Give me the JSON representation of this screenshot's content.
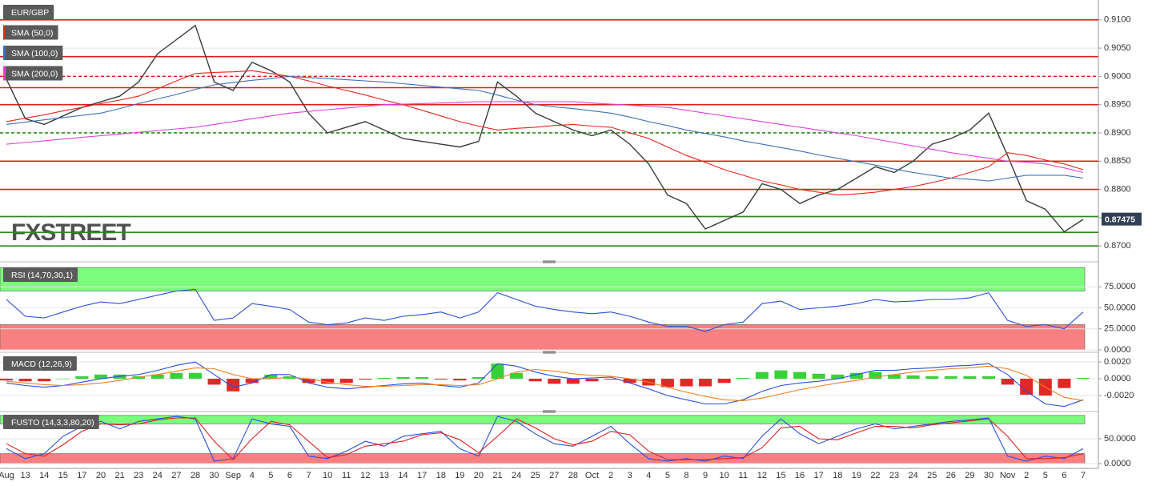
{
  "chart_data": [
    {
      "type": "line",
      "title": "EUR/GBP",
      "watermark": "FXSTREET",
      "last_price": 0.87475,
      "categories": [
        "Aug",
        "13",
        "14",
        "15",
        "17",
        "20",
        "21",
        "23",
        "24",
        "27",
        "28",
        "30",
        "Sep",
        "4",
        "5",
        "6",
        "7",
        "10",
        "11",
        "12",
        "13",
        "14",
        "17",
        "18",
        "19",
        "20",
        "21",
        "24",
        "25",
        "27",
        "28",
        "Oct",
        "2",
        "3",
        "4",
        "5",
        "8",
        "9",
        "10",
        "11",
        "12",
        "15",
        "16",
        "17",
        "18",
        "19",
        "22",
        "23",
        "24",
        "25",
        "26",
        "29",
        "30",
        "Nov",
        "2",
        "5",
        "6",
        "7"
      ],
      "ylim": [
        0.8679,
        0.9128
      ],
      "yticks": [
        {
          "value": 0.87,
          "label": "0.8700"
        },
        {
          "value": 0.875,
          "label": "0.8750"
        },
        {
          "value": 0.88,
          "label": "0.8800"
        },
        {
          "value": 0.885,
          "label": "0.8850"
        },
        {
          "value": 0.89,
          "label": "0.8900"
        },
        {
          "value": 0.895,
          "label": "0.8950"
        },
        {
          "value": 0.9,
          "label": "0.9000"
        },
        {
          "value": 0.905,
          "label": "0.9050"
        },
        {
          "value": 0.91,
          "label": "0.9100"
        }
      ],
      "levels": [
        {
          "value": 0.91,
          "color": "#e0201a",
          "dashed": false
        },
        {
          "value": 0.9035,
          "color": "#e0201a",
          "dashed": false
        },
        {
          "value": 0.9,
          "color": "#e0201a",
          "dashed": true
        },
        {
          "value": 0.898,
          "color": "#e0201a",
          "dashed": false
        },
        {
          "value": 0.895,
          "color": "#e0201a",
          "dashed": false
        },
        {
          "value": 0.89,
          "color": "#2a8a1a",
          "dashed": true
        },
        {
          "value": 0.885,
          "color": "#e0201a",
          "dashed": false
        },
        {
          "value": 0.88,
          "color": "#e0201a",
          "dashed": false
        },
        {
          "value": 0.8752,
          "color": "#2a8a1a",
          "dashed": false
        },
        {
          "value": 0.8724,
          "color": "#2a8a1a",
          "dashed": false
        },
        {
          "value": 0.87,
          "color": "#2a8a1a",
          "dashed": false
        }
      ],
      "series": [
        {
          "color": "#3a3a3a",
          "values": [
            0.8995,
            0.8925,
            0.8915,
            0.893,
            0.8945,
            0.8955,
            0.8965,
            0.899,
            0.904,
            0.9065,
            0.909,
            0.899,
            0.8975,
            0.9025,
            0.901,
            0.899,
            0.8935,
            0.89,
            0.891,
            0.892,
            0.8905,
            0.889,
            0.8885,
            0.888,
            0.8875,
            0.8885,
            0.899,
            0.8965,
            0.8935,
            0.892,
            0.8905,
            0.8895,
            0.8905,
            0.888,
            0.8845,
            0.879,
            0.8775,
            0.873,
            0.8745,
            0.876,
            0.881,
            0.88,
            0.8775,
            0.879,
            0.88,
            0.882,
            0.884,
            0.883,
            0.885,
            0.888,
            0.889,
            0.8905,
            0.8935,
            0.886,
            0.878,
            0.8765,
            0.8725,
            0.8747
          ]
        },
        {
          "name": "SMA (50,0)",
          "color": "#e8251c",
          "values": [
            0.892,
            0.8926,
            0.8932,
            0.8939,
            0.8945,
            0.8952,
            0.8958,
            0.8965,
            0.8978,
            0.8992,
            0.9005,
            0.9007,
            0.9008,
            0.901,
            0.9005,
            0.9,
            0.8992,
            0.8983,
            0.8975,
            0.8967,
            0.8958,
            0.895,
            0.894,
            0.893,
            0.892,
            0.8912,
            0.8905,
            0.8908,
            0.891,
            0.8913,
            0.8915,
            0.8912,
            0.891,
            0.89,
            0.889,
            0.8875,
            0.886,
            0.8848,
            0.8835,
            0.8825,
            0.8815,
            0.8808,
            0.88,
            0.8795,
            0.879,
            0.8792,
            0.8795,
            0.88,
            0.8805,
            0.8812,
            0.882,
            0.883,
            0.884,
            0.8865,
            0.886,
            0.8852,
            0.8845,
            0.8835
          ]
        },
        {
          "name": "SMA (100,0)",
          "color": "#3d6fb6",
          "values": [
            0.8915,
            0.8919,
            0.8923,
            0.8927,
            0.8931,
            0.8935,
            0.8943,
            0.8952,
            0.896,
            0.8968,
            0.8977,
            0.8985,
            0.8989,
            0.8993,
            0.8996,
            0.9,
            0.8998,
            0.8996,
            0.8994,
            0.8992,
            0.899,
            0.8987,
            0.8984,
            0.8981,
            0.8978,
            0.8975,
            0.8967,
            0.8958,
            0.895,
            0.8946,
            0.8943,
            0.8939,
            0.8935,
            0.8928,
            0.892,
            0.8913,
            0.8905,
            0.8899,
            0.8893,
            0.8886,
            0.888,
            0.8874,
            0.8868,
            0.8861,
            0.8855,
            0.8849,
            0.8843,
            0.8836,
            0.883,
            0.8825,
            0.882,
            0.8818,
            0.8815,
            0.882,
            0.8825,
            0.8825,
            0.8825,
            0.882
          ]
        },
        {
          "name": "SMA (200,0)",
          "color": "#e040e0",
          "values": [
            0.888,
            0.8883,
            0.8886,
            0.8889,
            0.8892,
            0.8895,
            0.8898,
            0.8901,
            0.8904,
            0.8907,
            0.891,
            0.8915,
            0.892,
            0.8925,
            0.893,
            0.8935,
            0.8938,
            0.8941,
            0.8944,
            0.8947,
            0.895,
            0.8951,
            0.8952,
            0.8953,
            0.8954,
            0.8955,
            0.8955,
            0.8955,
            0.8955,
            0.8955,
            0.8955,
            0.8953,
            0.8951,
            0.8949,
            0.8947,
            0.8945,
            0.894,
            0.8935,
            0.893,
            0.8925,
            0.892,
            0.8915,
            0.891,
            0.8905,
            0.89,
            0.8895,
            0.8889,
            0.8883,
            0.8877,
            0.8871,
            0.8865,
            0.886,
            0.8855,
            0.885,
            0.8848,
            0.8845,
            0.8838,
            0.883
          ]
        }
      ]
    },
    {
      "type": "line",
      "title": "RSI (14,70,30,1)",
      "ylim": [
        0,
        99
      ],
      "yticks": [
        {
          "value": 0,
          "label": "0.0000"
        },
        {
          "value": 25,
          "label": "25.0000"
        },
        {
          "value": 50,
          "label": "50.0000"
        },
        {
          "value": 75,
          "label": "75.0000"
        }
      ],
      "bands": [
        {
          "from": 70,
          "to": 98,
          "color": "#7cfc7c"
        },
        {
          "from": 0,
          "to": 30,
          "color": "#f88080"
        }
      ],
      "series": [
        {
          "color": "#2a4fd8",
          "values": [
            60,
            40,
            38,
            45,
            52,
            57,
            55,
            60,
            65,
            70,
            72,
            35,
            38,
            55,
            52,
            48,
            33,
            30,
            32,
            38,
            35,
            40,
            42,
            45,
            38,
            45,
            68,
            60,
            52,
            48,
            45,
            43,
            45,
            40,
            33,
            28,
            28,
            22,
            30,
            33,
            55,
            58,
            48,
            50,
            52,
            55,
            60,
            57,
            58,
            60,
            60,
            62,
            68,
            35,
            28,
            30,
            25,
            45
          ]
        }
      ]
    },
    {
      "type": "line",
      "title": "MACD (12,26,9)",
      "ylim": [
        -0.00371,
        0.00277
      ],
      "yticks": [
        {
          "value": -0.002,
          "label": "-0.0020"
        },
        {
          "value": 0,
          "label": "0.0000"
        },
        {
          "value": 0.002,
          "label": "0.0020"
        }
      ],
      "series": [
        {
          "type": "bar",
          "color": "#22cc22",
          "negative_color": "#e01010",
          "values": [
            -0.0002,
            -0.0003,
            -0.0003,
            0,
            0.0003,
            0.0005,
            0.0005,
            0.0003,
            0.0005,
            0.0007,
            0.0007,
            -0.0007,
            -0.0015,
            -0.0005,
            0.0005,
            0.0003,
            -0.0005,
            -0.0006,
            -0.0005,
            -0.0001,
            0.0001,
            0.0002,
            0.0002,
            -0.0001,
            -0.0002,
            0.0002,
            0.0018,
            0.0007,
            -0.0003,
            -0.0006,
            -0.0006,
            -0.0003,
            -0.0001,
            -0.0005,
            -0.0008,
            -0.001,
            -0.0009,
            -0.0009,
            -0.0005,
            0.0001,
            0.0008,
            0.001,
            0.0008,
            0.0006,
            0.0005,
            0.0007,
            0.0008,
            0.0005,
            0.0004,
            0.0003,
            0.0003,
            0.0003,
            0.0003,
            -0.0007,
            -0.0019,
            -0.002,
            -0.0011,
            0.0001
          ]
        },
        {
          "color": "#2a4fd8",
          "values": [
            -0.0005,
            -0.0008,
            -0.001,
            -0.0008,
            -0.0004,
            0,
            0.0003,
            0.0005,
            0.001,
            0.0016,
            0.002,
            0.0005,
            -0.001,
            -0.0005,
            0.0005,
            0.0005,
            -0.0005,
            -0.001,
            -0.0012,
            -0.001,
            -0.0008,
            -0.0006,
            -0.0005,
            -0.0008,
            -0.001,
            -0.0005,
            0.0018,
            0.0015,
            0.0008,
            0.0003,
            0,
            0.0001,
            0.0002,
            -0.0005,
            -0.0012,
            -0.002,
            -0.0025,
            -0.003,
            -0.003,
            -0.0025,
            -0.0015,
            -0.0008,
            -0.0005,
            -0.0003,
            0,
            0.0005,
            0.001,
            0.001,
            0.0012,
            0.0013,
            0.0015,
            0.0016,
            0.0018,
            0.0005,
            -0.0015,
            -0.003,
            -0.0033,
            -0.0025
          ]
        },
        {
          "color": "#f08020",
          "values": [
            -0.0003,
            -0.0005,
            -0.0007,
            -0.0008,
            -0.0007,
            -0.0005,
            -0.0002,
            0.0002,
            0.0005,
            0.0009,
            0.0013,
            0.0012,
            0.0005,
            0,
            0,
            0.0002,
            0,
            -0.0004,
            -0.0007,
            -0.0009,
            -0.0009,
            -0.0008,
            -0.0007,
            -0.0007,
            -0.0008,
            -0.0007,
            0,
            0.0008,
            0.0011,
            0.0009,
            0.0006,
            0.0004,
            0.0003,
            0,
            -0.0004,
            -0.001,
            -0.0016,
            -0.0021,
            -0.0025,
            -0.0026,
            -0.0023,
            -0.0018,
            -0.0013,
            -0.0009,
            -0.0005,
            -0.0002,
            0.0002,
            0.0005,
            0.0008,
            0.001,
            0.0012,
            0.0013,
            0.0015,
            0.0012,
            0.0004,
            -0.001,
            -0.0022,
            -0.0026
          ]
        }
      ]
    },
    {
      "type": "line",
      "title": "FUSTO (14,3,3,80,20)",
      "ylim": [
        -4.8,
        100
      ],
      "yticks": [
        {
          "value": 0,
          "label": "0.0000"
        },
        {
          "value": 50,
          "label": "50.0000"
        }
      ],
      "bands": [
        {
          "from": 80,
          "to": 97,
          "color": "#7cfc7c"
        },
        {
          "from": 0,
          "to": 20,
          "color": "#f88080"
        }
      ],
      "series": [
        {
          "color": "#2a4fd8",
          "values": [
            30,
            10,
            20,
            55,
            75,
            85,
            70,
            85,
            90,
            95,
            90,
            5,
            10,
            90,
            80,
            75,
            15,
            10,
            25,
            45,
            35,
            55,
            60,
            65,
            30,
            15,
            95,
            85,
            60,
            40,
            35,
            55,
            75,
            40,
            10,
            5,
            10,
            5,
            15,
            10,
            55,
            90,
            60,
            40,
            55,
            70,
            80,
            70,
            75,
            80,
            85,
            88,
            92,
            15,
            5,
            15,
            10,
            30
          ]
        },
        {
          "color": "#e02020",
          "values": [
            40,
            20,
            15,
            38,
            65,
            80,
            78,
            80,
            88,
            92,
            92,
            45,
            8,
            50,
            85,
            78,
            45,
            12,
            18,
            35,
            40,
            45,
            58,
            62,
            48,
            22,
            55,
            90,
            72,
            50,
            38,
            45,
            65,
            58,
            25,
            8,
            8,
            8,
            10,
            12,
            32,
            72,
            75,
            50,
            48,
            62,
            75,
            75,
            72,
            78,
            82,
            86,
            90,
            55,
            10,
            10,
            12,
            20
          ]
        }
      ]
    }
  ]
}
